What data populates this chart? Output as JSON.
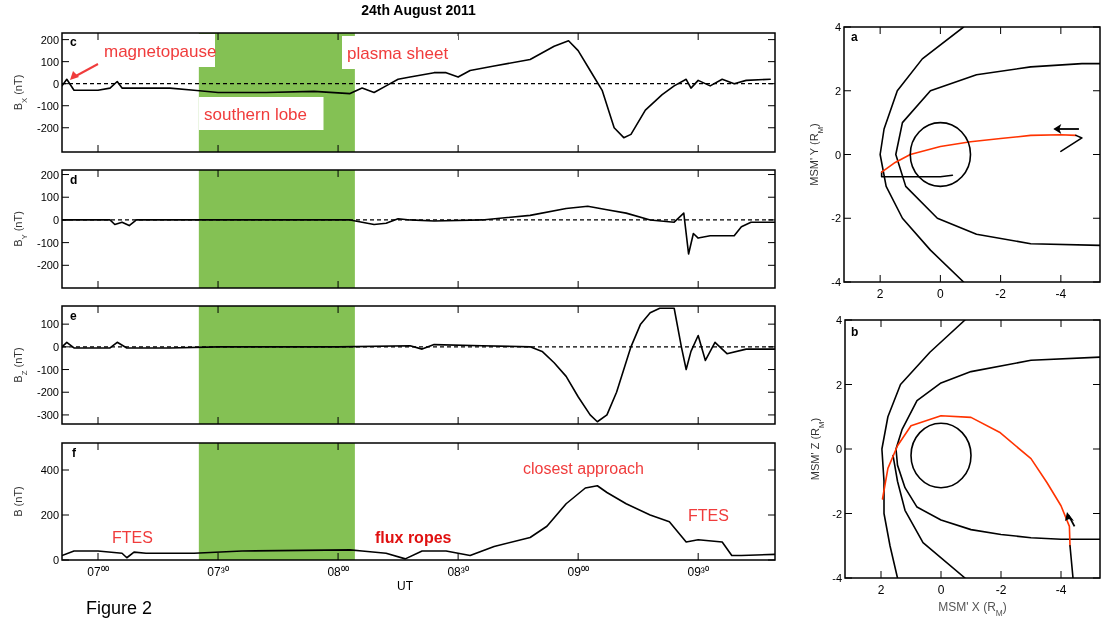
{
  "chart_data": [
    {
      "type": "line",
      "title": "24th August 2011",
      "ylabel": "B$_{X}$ (nT)",
      "annotations": [
        "c",
        "magnetopause",
        "plasma sheet",
        "southern lobe"
      ],
      "xlim": [
        6.85,
        9.82
      ],
      "ylim": [
        -310,
        230
      ],
      "xticks": [
        {
          "value": 7,
          "label": null
        },
        {
          "value": 7.5,
          "label": null
        },
        {
          "value": 8,
          "label": null
        },
        {
          "value": 8.5,
          "label": null
        },
        {
          "value": 9,
          "label": null
        },
        {
          "value": 9.5,
          "label": null
        }
      ],
      "yticks": [
        -200,
        -100,
        0,
        100,
        200
      ],
      "tick_labels": "y",
      "ref_lines": [
        {
          "axis": "y",
          "value": 0,
          "line_style": "dashed"
        }
      ],
      "bands": [
        {
          "axis": "x",
          "from": 7.42,
          "to": 8.07,
          "color": "#84c154"
        }
      ],
      "series": [
        {
          "color": "#000000",
          "x": [
            6.85,
            6.87,
            6.9,
            7.0,
            7.05,
            7.08,
            7.1,
            7.3,
            7.4,
            7.5,
            7.7,
            7.9,
            8.05,
            8.1,
            8.15,
            8.2,
            8.25,
            8.3,
            8.4,
            8.45,
            8.5,
            8.55,
            8.65,
            8.8,
            8.9,
            8.96,
            9.0,
            9.05,
            9.1,
            9.15,
            9.19,
            9.22,
            9.28,
            9.35,
            9.4,
            9.45,
            9.47,
            9.5,
            9.55,
            9.6,
            9.65,
            9.7,
            9.8
          ],
          "values": [
            -10,
            20,
            -30,
            -30,
            -20,
            10,
            -20,
            -20,
            -30,
            -40,
            -40,
            -35,
            -45,
            -20,
            -40,
            -10,
            20,
            30,
            50,
            50,
            30,
            60,
            80,
            110,
            170,
            195,
            150,
            60,
            -30,
            -200,
            -245,
            -230,
            -120,
            -50,
            -10,
            20,
            -20,
            15,
            -10,
            20,
            0,
            15,
            20
          ]
        }
      ]
    },
    {
      "type": "line",
      "ylabel": "B$_{Y}$ (nT)",
      "annotations": [
        "d"
      ],
      "xlim": [
        6.85,
        9.82
      ],
      "ylim": [
        -300,
        220
      ],
      "xticks": [
        {
          "value": 7,
          "label": null
        },
        {
          "value": 7.5,
          "label": null
        },
        {
          "value": 8,
          "label": null
        },
        {
          "value": 8.5,
          "label": null
        },
        {
          "value": 9,
          "label": null
        },
        {
          "value": 9.5,
          "label": null
        }
      ],
      "yticks": [
        -200,
        -100,
        0,
        100,
        200
      ],
      "tick_labels": "y",
      "ref_lines": [
        {
          "axis": "y",
          "value": 0,
          "line_style": "dashed"
        }
      ],
      "bands": [
        {
          "axis": "x",
          "from": 7.42,
          "to": 8.07,
          "color": "#84c154"
        }
      ],
      "series": [
        {
          "color": "#000000",
          "x": [
            6.85,
            7.05,
            7.07,
            7.1,
            7.13,
            7.16,
            7.3,
            7.6,
            8.05,
            8.1,
            8.15,
            8.2,
            8.25,
            8.3,
            8.4,
            8.6,
            8.8,
            8.95,
            9.04,
            9.12,
            9.2,
            9.3,
            9.4,
            9.44,
            9.46,
            9.48,
            9.5,
            9.55,
            9.6,
            9.65,
            9.68,
            9.72,
            9.82
          ],
          "values": [
            0,
            0,
            -20,
            -10,
            -25,
            0,
            0,
            0,
            0,
            -10,
            -20,
            -15,
            5,
            0,
            -5,
            0,
            20,
            50,
            60,
            45,
            30,
            0,
            -10,
            30,
            -150,
            -60,
            -80,
            -70,
            -70,
            -70,
            -30,
            -10,
            -10
          ]
        }
      ]
    },
    {
      "type": "line",
      "ylabel": "B$_{Z}$ (nT)",
      "annotations": [
        "e"
      ],
      "xlim": [
        6.85,
        9.82
      ],
      "ylim": [
        -340,
        180
      ],
      "xticks": [
        {
          "value": 7,
          "label": null
        },
        {
          "value": 7.5,
          "label": null
        },
        {
          "value": 8,
          "label": null
        },
        {
          "value": 8.5,
          "label": null
        },
        {
          "value": 9,
          "label": null
        },
        {
          "value": 9.5,
          "label": null
        }
      ],
      "yticks": [
        -300,
        -200,
        -100,
        0,
        100
      ],
      "tick_labels": "y",
      "ref_lines": [
        {
          "axis": "y",
          "value": 0,
          "line_style": "dashed"
        }
      ],
      "bands": [
        {
          "axis": "x",
          "from": 7.42,
          "to": 8.07,
          "color": "#84c154"
        }
      ],
      "series": [
        {
          "color": "#000000",
          "x": [
            6.85,
            6.87,
            6.9,
            7.05,
            7.08,
            7.12,
            7.3,
            7.5,
            8.0,
            8.3,
            8.35,
            8.4,
            8.6,
            8.8,
            8.85,
            8.9,
            8.95,
            9.0,
            9.05,
            9.08,
            9.12,
            9.16,
            9.22,
            9.26,
            9.3,
            9.34,
            9.4,
            9.43,
            9.45,
            9.47,
            9.5,
            9.53,
            9.57,
            9.62,
            9.7,
            9.82
          ],
          "values": [
            0,
            20,
            -5,
            -5,
            20,
            -5,
            -5,
            0,
            0,
            5,
            -10,
            10,
            5,
            0,
            -20,
            -70,
            -130,
            -220,
            -300,
            -330,
            -300,
            -200,
            0,
            100,
            150,
            170,
            170,
            0,
            -100,
            -20,
            50,
            -60,
            20,
            -30,
            -10,
            -10
          ]
        }
      ]
    },
    {
      "type": "line",
      "ylabel": "B (nT)",
      "xlabel": "UT",
      "annotations": [
        "f",
        "FTES",
        "flux ropes",
        "closest approach",
        "FTES",
        "Figure 2"
      ],
      "xlim": [
        6.85,
        9.82
      ],
      "ylim": [
        0,
        520
      ],
      "xticks": [
        {
          "value": 7,
          "label": "07⁰⁰"
        },
        {
          "value": 7.5,
          "label": "07³⁰"
        },
        {
          "value": 8,
          "label": "08⁰⁰"
        },
        {
          "value": 8.5,
          "label": "08³⁰"
        },
        {
          "value": 9,
          "label": "09⁰⁰"
        },
        {
          "value": 9.5,
          "label": "09³⁰"
        }
      ],
      "yticks": [
        0,
        200,
        400
      ],
      "bands": [
        {
          "axis": "x",
          "from": 7.42,
          "to": 8.07,
          "color": "#84c154"
        }
      ],
      "series": [
        {
          "color": "#000000",
          "x": [
            6.85,
            6.9,
            7.0,
            7.1,
            7.12,
            7.15,
            7.2,
            7.4,
            7.6,
            8.05,
            8.1,
            8.2,
            8.28,
            8.35,
            8.45,
            8.55,
            8.65,
            8.8,
            8.87,
            8.95,
            9.03,
            9.08,
            9.12,
            9.2,
            9.3,
            9.38,
            9.45,
            9.5,
            9.6,
            9.64,
            9.68,
            9.82
          ],
          "values": [
            20,
            40,
            40,
            30,
            10,
            35,
            30,
            30,
            40,
            45,
            40,
            30,
            5,
            40,
            40,
            20,
            60,
            100,
            150,
            250,
            320,
            330,
            300,
            250,
            200,
            170,
            80,
            90,
            80,
            20,
            20,
            25
          ]
        }
      ]
    },
    {
      "type": "line",
      "ylabel": "MSM' Y (R$_{M}$)",
      "annotations": [
        "a"
      ],
      "xlim": [
        3.2,
        -5.3
      ],
      "ylim": [
        -4,
        4
      ],
      "xticks": [
        2,
        0,
        -2,
        -4
      ],
      "yticks": [
        -4,
        -2,
        0,
        2,
        4
      ],
      "series": [
        {
          "color": "#000000",
          "x": [
            -0.77,
            0.6,
            1.43,
            1.87,
            2.0,
            1.8,
            1.26,
            0.33,
            -0.77
          ],
          "values": [
            4,
            3,
            2,
            0.8,
            0,
            -1,
            -2,
            -3,
            -4
          ]
        },
        {
          "color": "#000000",
          "x": [
            -5.3,
            -4.7,
            -3,
            -1.2,
            0.33,
            1.26,
            1.48,
            1.15,
            0.1,
            -1.2,
            -3,
            -5.3
          ],
          "values": [
            2.85,
            2.85,
            2.75,
            2.5,
            2,
            1,
            0,
            -1,
            -2,
            -2.5,
            -2.8,
            -2.85
          ]
        },
        {
          "color": "#000000",
          "x": [
            1.95,
            1.95,
            0,
            -0.4
          ],
          "values": [
            -0.55,
            -0.7,
            -0.7,
            -0.65
          ]
        },
        {
          "color": "#ff3300",
          "x": [
            1.95,
            1.5,
            1,
            0,
            -1,
            -2,
            -3,
            -4,
            -4.5
          ],
          "values": [
            -0.55,
            -0.25,
            0,
            0.25,
            0.4,
            0.5,
            0.6,
            0.62,
            0.6
          ]
        },
        {
          "color": "#000000",
          "x": [
            -4.5,
            -4.7,
            -4.0
          ],
          "values": [
            0.6,
            0.52,
            0.1
          ]
        }
      ]
    },
    {
      "type": "line",
      "xlabel": "MSM' X (R$_{M}$)",
      "ylabel": "MSM' Z (R$_{M}$)",
      "annotations": [
        "b"
      ],
      "xlim": [
        3.2,
        -5.3
      ],
      "ylim": [
        -4,
        4
      ],
      "xticks": [
        2,
        0,
        -2,
        -4
      ],
      "yticks": [
        -4,
        -2,
        0,
        2,
        4
      ],
      "series": [
        {
          "color": "#000000",
          "x": [
            -0.8,
            0.37,
            1.35,
            1.77,
            1.97,
            1.9,
            1.9,
            1.7,
            1.45
          ],
          "values": [
            4,
            3,
            2,
            1,
            0,
            -1,
            -2,
            -3,
            -4
          ]
        },
        {
          "color": "#000000",
          "x": [
            -5.3,
            -3,
            -1,
            0,
            0.8,
            1.3,
            1.5,
            1.45,
            1.2,
            0.8,
            0,
            -1,
            -2,
            -3,
            -4,
            -5.3
          ],
          "values": [
            2.85,
            2.75,
            2.4,
            2.05,
            1.5,
            0.6,
            0,
            -0.5,
            -1.2,
            -1.8,
            -2.2,
            -2.5,
            -2.65,
            -2.75,
            -2.8,
            -2.8
          ]
        },
        {
          "color": "#000000",
          "x": [
            1.6,
            1.45,
            1.2,
            0.6,
            -0.8
          ],
          "values": [
            -0.2,
            -1,
            -1.9,
            -2.9,
            -4
          ]
        },
        {
          "color": "#ff3300",
          "x": [
            1.95,
            1.77,
            1.45,
            1.0,
            0,
            -1,
            -1.95,
            -3.0,
            -3.53,
            -4.0,
            -4.28,
            -4.3
          ],
          "values": [
            -1.55,
            -0.6,
            0.1,
            0.72,
            1.03,
            0.98,
            0.52,
            -0.3,
            -1.04,
            -1.76,
            -2.4,
            -3.0
          ]
        },
        {
          "color": "#000000",
          "x": [
            -4.3,
            -4.4
          ],
          "values": [
            -3.0,
            -4
          ]
        }
      ]
    }
  ]
}
